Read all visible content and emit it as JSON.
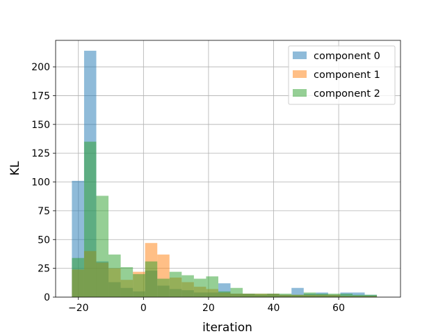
{
  "chart_data": {
    "type": "histogram",
    "title": "",
    "xlabel": "iteration",
    "ylabel": "KL",
    "xlim": [
      -27,
      79
    ],
    "ylim": [
      0,
      223
    ],
    "xticks": [
      -20,
      0,
      20,
      40,
      60
    ],
    "yticks": [
      0,
      25,
      50,
      75,
      100,
      125,
      150,
      175,
      200
    ],
    "grid": true,
    "legend_position": "top-right",
    "series": [
      {
        "name": "component 0",
        "color": "#1f77b4",
        "opacity": 0.5,
        "bin_start": -22,
        "bin_width": 3.75,
        "values": [
          101,
          214,
          31,
          13,
          8,
          5,
          23,
          10,
          7,
          6,
          4,
          4,
          12,
          3,
          3,
          2,
          3,
          2,
          8,
          3,
          4,
          2,
          4,
          4,
          2
        ]
      },
      {
        "name": "component 1",
        "color": "#ff7f0e",
        "opacity": 0.5,
        "bin_start": -22,
        "bin_width": 3.75,
        "values": [
          24,
          40,
          30,
          25,
          15,
          22,
          47,
          37,
          17,
          13,
          9,
          7,
          4,
          3,
          3,
          3,
          3,
          2,
          2,
          2,
          2,
          2,
          1,
          1,
          1
        ]
      },
      {
        "name": "component 2",
        "color": "#2ca02c",
        "opacity": 0.5,
        "bin_start": -22,
        "bin_width": 3.75,
        "values": [
          34,
          135,
          88,
          37,
          26,
          20,
          31,
          16,
          22,
          19,
          16,
          18,
          5,
          8,
          3,
          3,
          3,
          3,
          2,
          4,
          3,
          3,
          3,
          2,
          2
        ]
      }
    ]
  }
}
